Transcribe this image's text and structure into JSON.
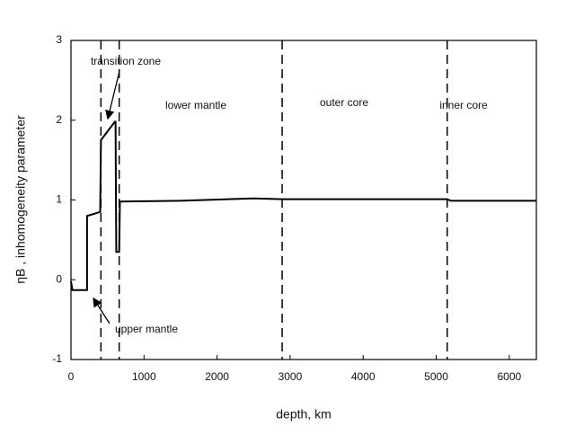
{
  "chart_data": {
    "type": "line",
    "x_label": "depth, km",
    "y_label": "ηB ,   inhomogeneity   parameter",
    "annotations": [
      "transition zone",
      "lower mantle",
      "outer core",
      "inner core",
      "upper mantle"
    ],
    "x": [
      0,
      20,
      220,
      220,
      400,
      410,
      600,
      610,
      620,
      660,
      670,
      1500,
      2500,
      2891,
      3500,
      5150,
      5200,
      6371
    ],
    "series": [
      {
        "color": "#000000",
        "values": [
          -0.02,
          -0.13,
          -0.13,
          0.8,
          0.85,
          1.75,
          1.98,
          1.98,
          0.35,
          0.35,
          0.98,
          0.99,
          1.02,
          1.01,
          1.01,
          1.01,
          0.99,
          0.99
        ]
      }
    ],
    "boundaries": [
      410,
      660,
      2891,
      5150
    ],
    "xlim": [
      0,
      6371
    ],
    "ylim": [
      -1,
      3
    ],
    "xticks": [
      0,
      1000,
      2000,
      3000,
      4000,
      5000,
      6000
    ],
    "yticks": [
      -1,
      0,
      1,
      2,
      3
    ]
  }
}
